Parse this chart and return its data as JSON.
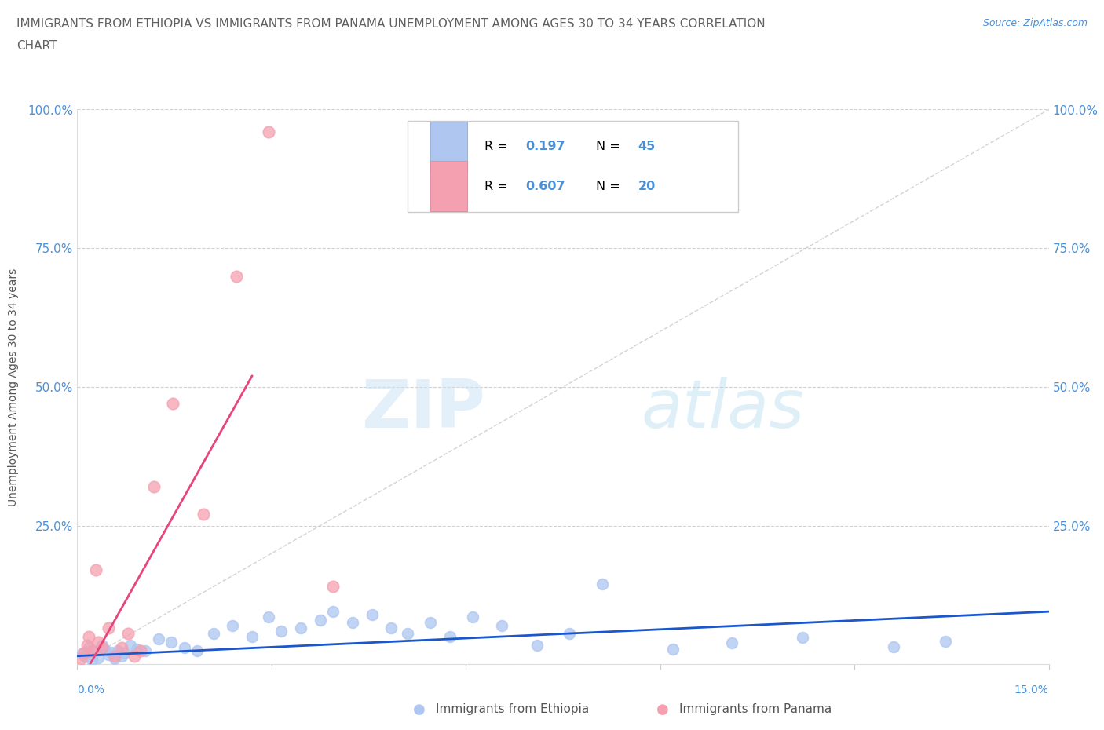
{
  "title_line1": "IMMIGRANTS FROM ETHIOPIA VS IMMIGRANTS FROM PANAMA UNEMPLOYMENT AMONG AGES 30 TO 34 YEARS CORRELATION",
  "title_line2": "CHART",
  "source_text": "Source: ZipAtlas.com",
  "ylabel": "Unemployment Among Ages 30 to 34 years",
  "watermark_zip": "ZIP",
  "watermark_atlas": "atlas",
  "xlim": [
    0.0,
    15.0
  ],
  "ylim": [
    0.0,
    100.0
  ],
  "yticks": [
    0,
    25,
    50,
    75,
    100
  ],
  "ytick_labels": [
    "",
    "25.0%",
    "50.0%",
    "75.0%",
    "100.0%"
  ],
  "xticks": [
    0,
    3,
    6,
    9,
    12,
    15
  ],
  "ethiopia_color": "#aec6f0",
  "panama_color": "#f5a0b0",
  "ethiopia_line_color": "#1a56cc",
  "panama_line_color": "#e8457a",
  "title_color": "#606060",
  "axis_color": "#4a90d9",
  "grid_color": "#cccccc",
  "r_value_color": "#4a90d9",
  "ethiopia_scatter_x": [
    0.08,
    0.12,
    0.18,
    0.22,
    0.28,
    0.32,
    0.38,
    0.42,
    0.48,
    0.52,
    0.58,
    0.62,
    0.68,
    0.72,
    0.82,
    0.92,
    1.05,
    1.25,
    1.45,
    1.65,
    1.85,
    2.1,
    2.4,
    2.7,
    2.95,
    3.15,
    3.45,
    3.75,
    3.95,
    4.25,
    4.55,
    4.85,
    5.1,
    5.45,
    5.75,
    6.1,
    6.55,
    7.1,
    7.6,
    8.1,
    9.2,
    10.1,
    11.2,
    12.6,
    13.4
  ],
  "ethiopia_scatter_y": [
    2.0,
    1.5,
    3.0,
    0.8,
    2.5,
    1.2,
    3.5,
    2.8,
    1.8,
    2.2,
    1.0,
    2.5,
    1.5,
    2.0,
    3.5,
    2.8,
    2.5,
    4.5,
    4.0,
    3.0,
    2.5,
    5.5,
    7.0,
    5.0,
    8.5,
    6.0,
    6.5,
    8.0,
    9.5,
    7.5,
    9.0,
    6.5,
    5.5,
    7.5,
    5.0,
    8.5,
    7.0,
    3.5,
    5.5,
    14.5,
    2.8,
    3.8,
    4.8,
    3.2,
    4.2
  ],
  "panama_scatter_x": [
    0.05,
    0.1,
    0.15,
    0.18,
    0.22,
    0.28,
    0.32,
    0.38,
    0.48,
    0.58,
    0.68,
    0.78,
    0.88,
    0.98,
    1.18,
    1.48,
    1.95,
    2.45,
    2.95,
    3.95
  ],
  "panama_scatter_y": [
    1.0,
    2.0,
    3.5,
    5.0,
    2.5,
    17.0,
    4.0,
    3.0,
    6.5,
    1.5,
    3.0,
    5.5,
    1.5,
    2.5,
    32.0,
    47.0,
    27.0,
    70.0,
    96.0,
    14.0
  ],
  "ethiopia_trend_x": [
    0.0,
    15.0
  ],
  "ethiopia_trend_y": [
    1.5,
    9.5
  ],
  "panama_trend_x": [
    0.1,
    2.7
  ],
  "panama_trend_y": [
    -2.0,
    52.0
  ],
  "diag_line_x": [
    0.0,
    15.0
  ],
  "diag_line_y": [
    0.0,
    100.0
  ]
}
